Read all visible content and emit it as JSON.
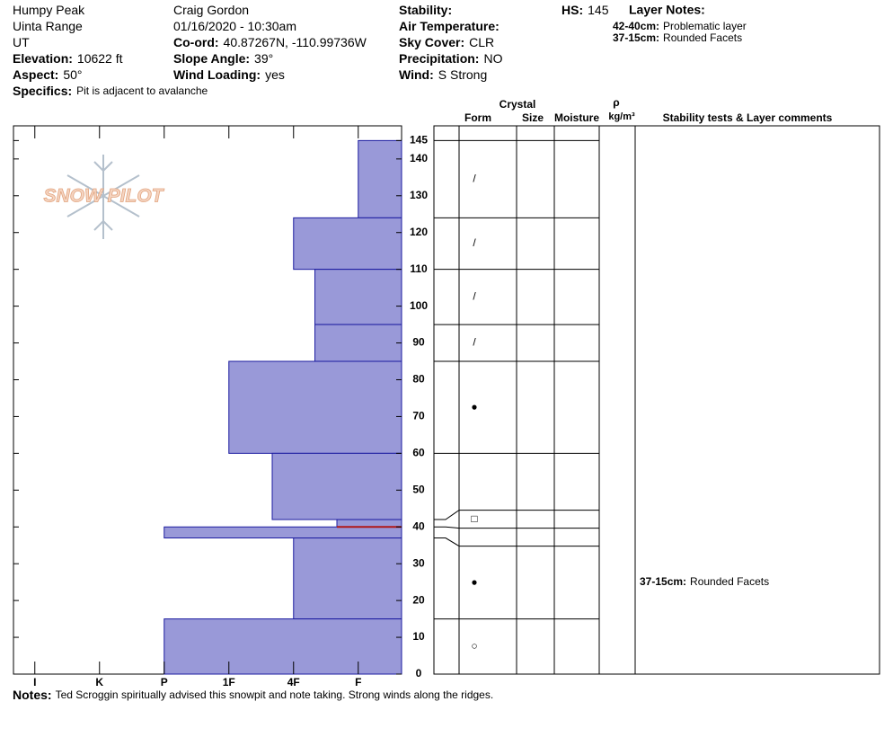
{
  "header": {
    "col1": [
      {
        "value": "Humpy Peak"
      },
      {
        "value": "Uinta Range"
      },
      {
        "value": "UT"
      },
      {
        "label": "Elevation:",
        "value": "10622 ft"
      },
      {
        "label": "Aspect:",
        "value": "50°"
      }
    ],
    "col2": [
      {
        "value": "Craig Gordon"
      },
      {
        "value": "01/16/2020 - 10:30am"
      },
      {
        "label": "Co-ord:",
        "value": "40.87267N, -110.99736W"
      },
      {
        "label": "Slope Angle:",
        "value": "39°"
      },
      {
        "label": "Wind Loading:",
        "value": "yes"
      }
    ],
    "col3": [
      {
        "label": "Stability:"
      },
      {
        "label": "Air Temperature:"
      },
      {
        "label": "Sky Cover:",
        "value": "CLR"
      },
      {
        "label": "Precipitation:",
        "value": "NO"
      },
      {
        "label": "Wind:",
        "value": "S Strong"
      }
    ],
    "specifics": {
      "label": "Specifics:",
      "value": "Pit is adjacent to avalanche"
    },
    "hs": {
      "label": "HS:",
      "value": 145
    },
    "layer_notes": {
      "title": "Layer Notes:",
      "items": [
        {
          "label": "42-40cm:",
          "text": "Problematic layer"
        },
        {
          "label": "37-15cm:",
          "text": "Rounded Facets"
        }
      ]
    },
    "logo": "SNOW PILOT"
  },
  "chart_data": {
    "type": "snow_profile",
    "color": "#9999d8",
    "edge_color": "#1c1ca0",
    "xlim": [
      6.33,
      0.33
    ],
    "xticks": [
      {
        "value": 6,
        "label": "I"
      },
      {
        "value": 5,
        "label": "K"
      },
      {
        "value": 4,
        "label": "P"
      },
      {
        "value": 3,
        "label": "1F"
      },
      {
        "value": 2,
        "label": "4F"
      },
      {
        "value": 1,
        "label": "F"
      }
    ],
    "ylim": [
      0,
      149
    ],
    "yticks": [
      0,
      10,
      20,
      30,
      40,
      50,
      60,
      70,
      80,
      90,
      100,
      110,
      120,
      130,
      140,
      145
    ],
    "problem_layer": {
      "depth": 40,
      "color": "#b01818"
    },
    "columns": {
      "crystal": "Crystal",
      "form": "Form",
      "size": "Size",
      "moisture": "Moisture",
      "rho": "ρ",
      "density_unit": "kg/m³",
      "comments": "Stability tests & Layer comments"
    },
    "layers": [
      {
        "top": 145,
        "bottom": 124,
        "hardness": 1,
        "form": "/"
      },
      {
        "top": 124,
        "bottom": 110,
        "hardness": 2,
        "form": "/"
      },
      {
        "top": 110,
        "bottom": 95,
        "hardness": 1.67,
        "form": "/"
      },
      {
        "top": 95,
        "bottom": 85,
        "hardness": 1.67,
        "form": "/"
      },
      {
        "top": 85,
        "bottom": 60,
        "hardness": 3,
        "form": "●"
      },
      {
        "top": 60,
        "bottom": 42,
        "hardness": 2.33,
        "form": null
      },
      {
        "top": 42,
        "bottom": 40,
        "hardness": 1.33,
        "form": "□"
      },
      {
        "top": 40,
        "bottom": 37,
        "hardness": 4,
        "form": null
      },
      {
        "top": 37,
        "bottom": 15,
        "hardness": 2,
        "form": "●",
        "comment_label": "37-15cm:",
        "comment": "Rounded Facets"
      },
      {
        "top": 15,
        "bottom": 0,
        "hardness": 4,
        "form": "○"
      }
    ]
  },
  "notes": {
    "label": "Notes:",
    "text": "Ted Scroggin spiritually advised this snowpit and note taking. Strong winds along the ridges."
  }
}
